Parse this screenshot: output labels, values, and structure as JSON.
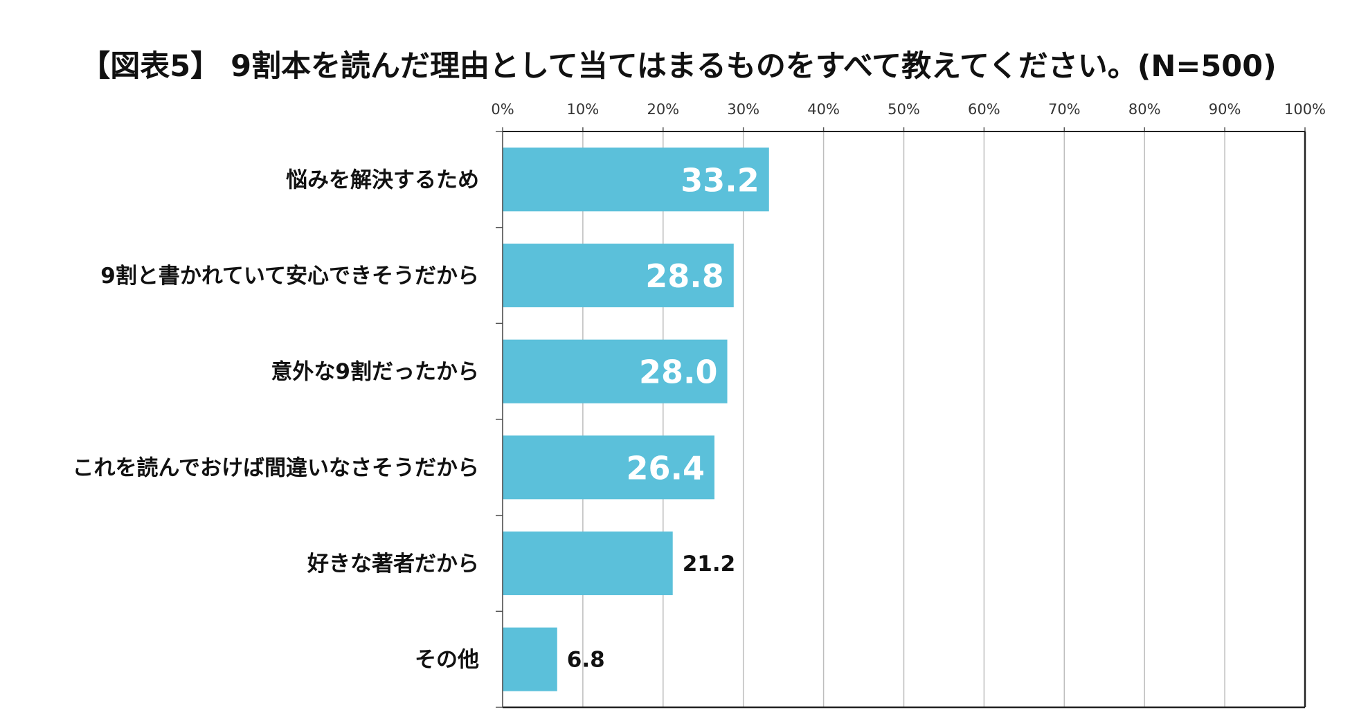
{
  "chart_data": {
    "type": "bar",
    "orientation": "horizontal",
    "title": "【図表5】 9割本を読んだ理由として当てはまるものをすべて教えてください。(N=500)",
    "xlabel": "",
    "ylabel": "",
    "xlim": [
      0,
      100
    ],
    "x_ticks": [
      0,
      10,
      20,
      30,
      40,
      50,
      60,
      70,
      80,
      90,
      100
    ],
    "x_tick_labels": [
      "0%",
      "10%",
      "20%",
      "30%",
      "40%",
      "50%",
      "60%",
      "70%",
      "80%",
      "90%",
      "100%"
    ],
    "grid": true,
    "legend": "none",
    "categories": [
      "悩みを解決するため",
      "9割と書かれていて安心できそうだから",
      "意外な9割だったから",
      "これを読んでおけば間違いなさそうだから",
      "好きな著者だから",
      "その他"
    ],
    "values": [
      33.2,
      28.8,
      28.0,
      26.4,
      21.2,
      6.8
    ],
    "value_labels": [
      "33.2",
      "28.8",
      "28.0",
      "26.4",
      "21.2",
      "6.8"
    ],
    "bar_color": "#5bc0da",
    "label_inside_color": "#ffffff",
    "label_outside_color": "#111111"
  }
}
